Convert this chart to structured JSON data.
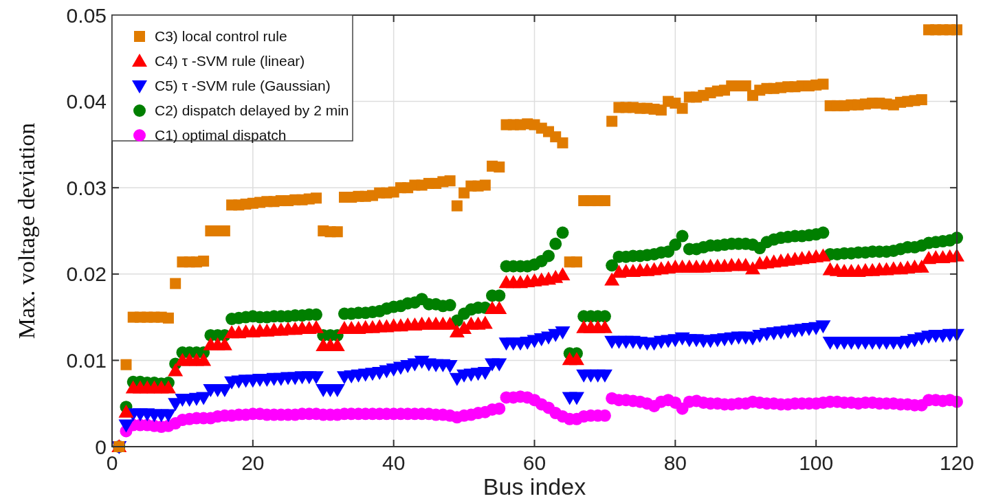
{
  "chart_data": {
    "type": "scatter",
    "xlabel": "Bus index",
    "ylabel": "Max. voltage deviation",
    "xlim": [
      0,
      120
    ],
    "ylim": [
      0,
      0.05
    ],
    "xticks": [
      0,
      20,
      40,
      60,
      80,
      100,
      120
    ],
    "yticks": [
      0,
      0.01,
      0.02,
      0.03,
      0.04,
      0.05
    ],
    "grid": true,
    "legend": "top left",
    "x": [
      1,
      2,
      3,
      4,
      5,
      6,
      7,
      8,
      9,
      10,
      11,
      12,
      13,
      14,
      15,
      16,
      17,
      18,
      19,
      20,
      21,
      22,
      23,
      24,
      25,
      26,
      27,
      28,
      29,
      30,
      31,
      32,
      33,
      34,
      35,
      36,
      37,
      38,
      39,
      40,
      41,
      42,
      43,
      44,
      45,
      46,
      47,
      48,
      49,
      50,
      51,
      52,
      53,
      54,
      55,
      56,
      57,
      58,
      59,
      60,
      61,
      62,
      63,
      64,
      65,
      66,
      67,
      68,
      69,
      70,
      71,
      72,
      73,
      74,
      75,
      76,
      77,
      78,
      79,
      80,
      81,
      82,
      83,
      84,
      85,
      86,
      87,
      88,
      89,
      90,
      91,
      92,
      93,
      94,
      95,
      96,
      97,
      98,
      99,
      100,
      101,
      102,
      103,
      104,
      105,
      106,
      107,
      108,
      109,
      110,
      111,
      112,
      113,
      114,
      115,
      116,
      117,
      118,
      119,
      120
    ],
    "series": [
      {
        "name": "C3) local control rule",
        "color": "#e07b00",
        "marker": "square",
        "values": [
          0,
          0.0095,
          0.015,
          0.015,
          0.015,
          0.015,
          0.015,
          0.0149,
          0.0189,
          0.0214,
          0.0214,
          0.0214,
          0.0215,
          0.025,
          0.025,
          0.025,
          0.028,
          0.028,
          0.0281,
          0.0282,
          0.0283,
          0.0284,
          0.0284,
          0.0285,
          0.0285,
          0.0286,
          0.0286,
          0.0287,
          0.0288,
          0.025,
          0.0249,
          0.0249,
          0.0289,
          0.0289,
          0.029,
          0.029,
          0.0291,
          0.0294,
          0.0294,
          0.0295,
          0.03,
          0.03,
          0.0303,
          0.0303,
          0.0305,
          0.0305,
          0.0307,
          0.0308,
          0.0279,
          0.0294,
          0.0302,
          0.0302,
          0.0303,
          0.0325,
          0.0324,
          0.0373,
          0.0373,
          0.0373,
          0.0374,
          0.0373,
          0.0369,
          0.0365,
          0.0359,
          0.0352,
          0.0214,
          0.0214,
          0.0285,
          0.0285,
          0.0285,
          0.0285,
          0.0377,
          0.0393,
          0.0393,
          0.0393,
          0.0392,
          0.0392,
          0.0391,
          0.039,
          0.04,
          0.0398,
          0.0392,
          0.0405,
          0.0405,
          0.0407,
          0.041,
          0.0412,
          0.0413,
          0.0418,
          0.0418,
          0.0418,
          0.0407,
          0.0413,
          0.0415,
          0.0415,
          0.0416,
          0.0417,
          0.0417,
          0.0418,
          0.0418,
          0.0419,
          0.042,
          0.0395,
          0.0395,
          0.0395,
          0.0396,
          0.0396,
          0.0397,
          0.0398,
          0.0398,
          0.0397,
          0.0396,
          0.0399,
          0.04,
          0.0401,
          0.0402,
          0.0483,
          0.0483,
          0.0483,
          0.0483,
          0.0483
        ]
      },
      {
        "name": "C4) τ -SVM rule (linear)",
        "color": "#ff0000",
        "marker": "triangle",
        "values": [
          0,
          0.004,
          0.0068,
          0.0068,
          0.0068,
          0.0068,
          0.0068,
          0.0068,
          0.0088,
          0.01,
          0.01,
          0.01,
          0.01,
          0.0118,
          0.0118,
          0.0118,
          0.0132,
          0.0132,
          0.0133,
          0.0133,
          0.0134,
          0.0134,
          0.0135,
          0.0135,
          0.0136,
          0.0136,
          0.0137,
          0.0137,
          0.0138,
          0.0117,
          0.0117,
          0.0117,
          0.0137,
          0.0137,
          0.0137,
          0.0138,
          0.0138,
          0.0139,
          0.0139,
          0.014,
          0.014,
          0.0141,
          0.0141,
          0.0142,
          0.0142,
          0.0142,
          0.0142,
          0.0142,
          0.0133,
          0.0137,
          0.0142,
          0.0142,
          0.0143,
          0.016,
          0.016,
          0.019,
          0.019,
          0.019,
          0.0191,
          0.0192,
          0.0193,
          0.0194,
          0.0196,
          0.0199,
          0.0101,
          0.0101,
          0.0138,
          0.0138,
          0.0138,
          0.0138,
          0.0193,
          0.0202,
          0.0203,
          0.0203,
          0.0204,
          0.0204,
          0.0205,
          0.0206,
          0.0207,
          0.0208,
          0.0208,
          0.0208,
          0.0208,
          0.0208,
          0.0209,
          0.0209,
          0.0209,
          0.021,
          0.021,
          0.021,
          0.0206,
          0.0212,
          0.0213,
          0.0214,
          0.0215,
          0.0216,
          0.0217,
          0.0218,
          0.0219,
          0.022,
          0.0221,
          0.0205,
          0.0204,
          0.0203,
          0.0203,
          0.0203,
          0.0204,
          0.0204,
          0.0205,
          0.0205,
          0.0206,
          0.0206,
          0.0207,
          0.0208,
          0.0208,
          0.0218,
          0.0219,
          0.0219,
          0.022,
          0.0221
        ]
      },
      {
        "name": "C5) τ -SVM rule (Gaussian)",
        "color": "#0000ff",
        "marker": "triangle-down",
        "values": [
          0,
          0.0025,
          0.0038,
          0.0038,
          0.0038,
          0.0037,
          0.0037,
          0.0037,
          0.005,
          0.0055,
          0.0055,
          0.0056,
          0.0057,
          0.0066,
          0.0066,
          0.0066,
          0.0075,
          0.0076,
          0.0077,
          0.0077,
          0.0078,
          0.0078,
          0.0079,
          0.0079,
          0.008,
          0.008,
          0.0081,
          0.0081,
          0.0081,
          0.0066,
          0.0066,
          0.0066,
          0.0081,
          0.0082,
          0.0083,
          0.0084,
          0.0085,
          0.0086,
          0.0088,
          0.009,
          0.0092,
          0.0094,
          0.0096,
          0.0099,
          0.0096,
          0.0095,
          0.0095,
          0.0094,
          0.0079,
          0.0083,
          0.0084,
          0.0085,
          0.0086,
          0.0096,
          0.0096,
          0.012,
          0.012,
          0.012,
          0.0121,
          0.0123,
          0.0125,
          0.0127,
          0.013,
          0.0133,
          0.0057,
          0.0057,
          0.0083,
          0.0083,
          0.0083,
          0.0083,
          0.0122,
          0.0122,
          0.0122,
          0.0122,
          0.0121,
          0.012,
          0.012,
          0.0122,
          0.0123,
          0.0124,
          0.0126,
          0.0124,
          0.0124,
          0.0123,
          0.0123,
          0.0124,
          0.0125,
          0.0126,
          0.0127,
          0.0127,
          0.0126,
          0.0129,
          0.0131,
          0.0132,
          0.0133,
          0.0134,
          0.0135,
          0.0136,
          0.0137,
          0.0138,
          0.014,
          0.0121,
          0.0121,
          0.0121,
          0.0121,
          0.0121,
          0.0121,
          0.0121,
          0.0121,
          0.0121,
          0.0121,
          0.0121,
          0.0122,
          0.0124,
          0.0126,
          0.0128,
          0.0129,
          0.0129,
          0.013,
          0.013
        ]
      },
      {
        "name": "C2) dispatch delayed by 2 min",
        "color": "#007f00",
        "marker": "circle",
        "values": [
          0,
          0.0046,
          0.0075,
          0.0075,
          0.0074,
          0.0074,
          0.0073,
          0.0074,
          0.0096,
          0.0109,
          0.0109,
          0.0109,
          0.0109,
          0.0129,
          0.0129,
          0.0129,
          0.0148,
          0.0149,
          0.015,
          0.0151,
          0.015,
          0.015,
          0.0151,
          0.0151,
          0.0151,
          0.0152,
          0.0152,
          0.0153,
          0.0153,
          0.0129,
          0.0129,
          0.0129,
          0.0154,
          0.0154,
          0.0155,
          0.0155,
          0.0156,
          0.0157,
          0.016,
          0.0162,
          0.0163,
          0.0166,
          0.0167,
          0.0171,
          0.0165,
          0.0165,
          0.0163,
          0.0164,
          0.0146,
          0.0154,
          0.0159,
          0.0161,
          0.0161,
          0.0175,
          0.0175,
          0.0209,
          0.0209,
          0.0209,
          0.0209,
          0.0211,
          0.0215,
          0.0221,
          0.0235,
          0.0248,
          0.0108,
          0.0108,
          0.0151,
          0.0151,
          0.0151,
          0.0151,
          0.021,
          0.022,
          0.022,
          0.0221,
          0.0221,
          0.0222,
          0.0223,
          0.0225,
          0.0226,
          0.0234,
          0.0244,
          0.0229,
          0.0229,
          0.0231,
          0.0233,
          0.0233,
          0.0234,
          0.0235,
          0.0235,
          0.0235,
          0.0234,
          0.023,
          0.0237,
          0.024,
          0.0242,
          0.0243,
          0.0244,
          0.0244,
          0.0245,
          0.0246,
          0.0248,
          0.0223,
          0.0223,
          0.0224,
          0.0224,
          0.0225,
          0.0225,
          0.0226,
          0.0226,
          0.0226,
          0.0227,
          0.0229,
          0.0231,
          0.0231,
          0.0233,
          0.0236,
          0.0237,
          0.0238,
          0.0239,
          0.0242
        ]
      },
      {
        "name": "C1) optimal dispatch",
        "color": "#ff00ff",
        "marker": "circle",
        "values": [
          0,
          0.0018,
          0.0025,
          0.0025,
          0.0025,
          0.0024,
          0.0023,
          0.0024,
          0.0027,
          0.0031,
          0.0032,
          0.0033,
          0.0033,
          0.0033,
          0.0035,
          0.0036,
          0.0036,
          0.0037,
          0.0037,
          0.0038,
          0.0038,
          0.0037,
          0.0037,
          0.0037,
          0.0037,
          0.0037,
          0.0038,
          0.0038,
          0.0038,
          0.0037,
          0.0037,
          0.0037,
          0.0038,
          0.0038,
          0.0038,
          0.0038,
          0.0038,
          0.0038,
          0.0038,
          0.0038,
          0.0038,
          0.0038,
          0.0038,
          0.0038,
          0.0038,
          0.0037,
          0.0037,
          0.0036,
          0.0034,
          0.0036,
          0.0037,
          0.0039,
          0.004,
          0.0043,
          0.0044,
          0.0057,
          0.0057,
          0.0058,
          0.0057,
          0.0054,
          0.0049,
          0.0045,
          0.0039,
          0.0035,
          0.0032,
          0.0032,
          0.0035,
          0.0036,
          0.0036,
          0.0036,
          0.0056,
          0.0054,
          0.0054,
          0.0053,
          0.0052,
          0.005,
          0.0047,
          0.0052,
          0.0054,
          0.0051,
          0.0044,
          0.0052,
          0.0053,
          0.0051,
          0.005,
          0.005,
          0.0049,
          0.0049,
          0.005,
          0.005,
          0.0052,
          0.0051,
          0.005,
          0.005,
          0.0049,
          0.0049,
          0.005,
          0.005,
          0.005,
          0.005,
          0.0051,
          0.0052,
          0.0052,
          0.0051,
          0.0051,
          0.005,
          0.0051,
          0.0051,
          0.005,
          0.005,
          0.005,
          0.0049,
          0.0049,
          0.0048,
          0.0048,
          0.0054,
          0.0054,
          0.0053,
          0.0054,
          0.0052
        ]
      }
    ]
  }
}
